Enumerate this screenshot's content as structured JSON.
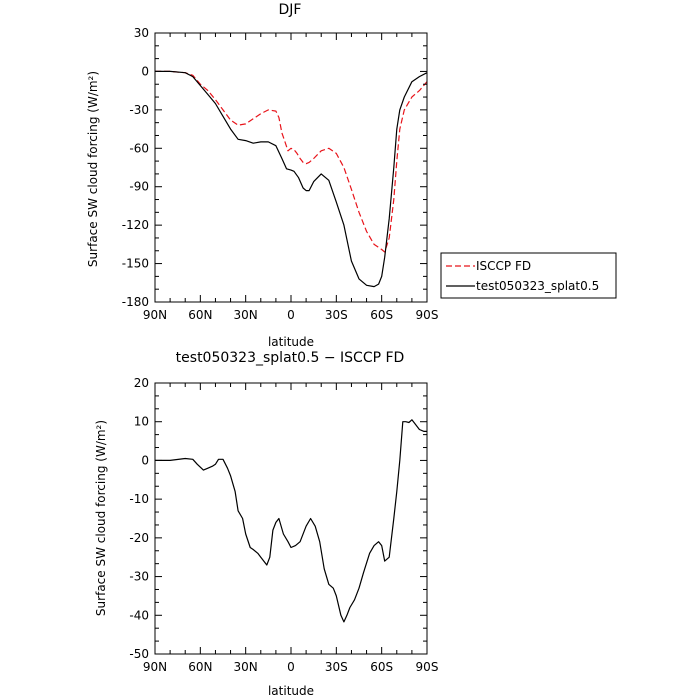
{
  "chart_data": [
    {
      "type": "line",
      "title": "DJF",
      "xlabel": "latitude",
      "ylabel": "Surface SW cloud forcing (W/m²)",
      "xlim": [
        90,
        -90
      ],
      "ylim": [
        -180,
        30
      ],
      "xticks": [
        90,
        60,
        30,
        0,
        -30,
        -60,
        -90
      ],
      "xtick_labels": [
        "90N",
        "60N",
        "30N",
        "0",
        "30S",
        "60S",
        "90S"
      ],
      "yticks": [
        30,
        0,
        -30,
        -60,
        -90,
        -120,
        -150,
        -180
      ],
      "ytick_labels": [
        "30",
        "0",
        "-30",
        "-60",
        "-90",
        "-120",
        "-150",
        "-180"
      ],
      "legend_position": "right",
      "series": [
        {
          "name": "ISCCP FD",
          "color": "#e8141b",
          "style": "dashed",
          "x": [
            90,
            80,
            70,
            65,
            60,
            55,
            50,
            45,
            40,
            35,
            30,
            25,
            20,
            15,
            10,
            8,
            6,
            4,
            2,
            0,
            -2,
            -4,
            -6,
            -8,
            -10,
            -12,
            -15,
            -20,
            -25,
            -30,
            -35,
            -40,
            -45,
            -50,
            -55,
            -60,
            -62,
            -65,
            -68,
            -70,
            -72,
            -75,
            -80,
            -85,
            -90
          ],
          "values": [
            0,
            0,
            -1,
            -3,
            -10,
            -15,
            -22,
            -30,
            -38,
            -42,
            -41,
            -37,
            -33,
            -30,
            -31,
            -36,
            -48,
            -55,
            -62,
            -60,
            -61,
            -64,
            -68,
            -71,
            -72,
            -71,
            -68,
            -62,
            -60,
            -64,
            -75,
            -92,
            -110,
            -125,
            -135,
            -139,
            -141,
            -130,
            -100,
            -70,
            -45,
            -30,
            -20,
            -15,
            -8
          ]
        },
        {
          "name": "test050323_splat0.5",
          "color": "#000000",
          "style": "solid",
          "x": [
            90,
            80,
            70,
            65,
            60,
            55,
            50,
            45,
            40,
            35,
            30,
            25,
            20,
            15,
            10,
            6,
            3,
            0,
            -2,
            -5,
            -8,
            -10,
            -12,
            -15,
            -20,
            -25,
            -30,
            -35,
            -40,
            -45,
            -50,
            -55,
            -58,
            -60,
            -62,
            -65,
            -68,
            -70,
            -72,
            -75,
            -80,
            -85,
            -90
          ],
          "values": [
            0,
            0,
            -1,
            -4,
            -11,
            -18,
            -25,
            -35,
            -45,
            -53,
            -54,
            -56,
            -55,
            -55,
            -58,
            -68,
            -76,
            -77,
            -78,
            -83,
            -91,
            -93,
            -93,
            -86,
            -80,
            -85,
            -102,
            -120,
            -148,
            -162,
            -167,
            -168,
            -166,
            -160,
            -145,
            -115,
            -75,
            -45,
            -30,
            -20,
            -8,
            -4,
            -1
          ]
        }
      ]
    },
    {
      "type": "line",
      "title": "test050323_splat0.5 − ISCCP FD",
      "xlabel": "latitude",
      "ylabel": "Surface SW cloud forcing (W/m²)",
      "xlim": [
        90,
        -90
      ],
      "ylim": [
        -50,
        20
      ],
      "xticks": [
        90,
        60,
        30,
        0,
        -30,
        -60,
        -90
      ],
      "xtick_labels": [
        "90N",
        "60N",
        "30N",
        "0",
        "30S",
        "60S",
        "90S"
      ],
      "yticks": [
        20,
        10,
        0,
        -10,
        -20,
        -30,
        -40,
        -50
      ],
      "ytick_labels": [
        "20",
        "10",
        "0",
        "-10",
        "-20",
        "-30",
        "-40",
        "-50"
      ],
      "series": [
        {
          "color": "#000000",
          "style": "solid",
          "x": [
            90,
            80,
            70,
            65,
            62,
            58,
            55,
            52,
            50,
            48,
            45,
            42,
            40,
            37,
            35,
            32,
            30,
            27,
            25,
            22,
            20,
            18,
            16,
            14,
            12,
            10,
            8,
            5,
            2,
            0,
            -3,
            -6,
            -10,
            -13,
            -16,
            -19,
            -22,
            -25,
            -28,
            -30,
            -33,
            -35,
            -37,
            -39,
            -42,
            -45,
            -48,
            -52,
            -55,
            -58,
            -60,
            -62,
            -65,
            -68,
            -70,
            -72,
            -74,
            -76,
            -78,
            -80,
            -82,
            -85,
            -88,
            -90
          ],
          "values": [
            0,
            0,
            0.5,
            0.3,
            -1,
            -2.5,
            -2,
            -1.5,
            -1,
            0.3,
            0.3,
            -2,
            -4,
            -8,
            -13,
            -15,
            -19,
            -22.5,
            -23,
            -24,
            -25,
            -26,
            -27,
            -25,
            -18,
            -16,
            -15,
            -19,
            -21,
            -22.5,
            -22,
            -21,
            -17,
            -15,
            -17,
            -21,
            -28,
            -32,
            -33,
            -35,
            -40,
            -41.7,
            -40,
            -38,
            -36,
            -33,
            -29,
            -24,
            -22,
            -21,
            -22,
            -26,
            -25,
            -15,
            -8,
            0,
            10,
            10,
            9.8,
            10.5,
            9.5,
            8,
            7.5,
            7.5
          ]
        }
      ]
    }
  ]
}
